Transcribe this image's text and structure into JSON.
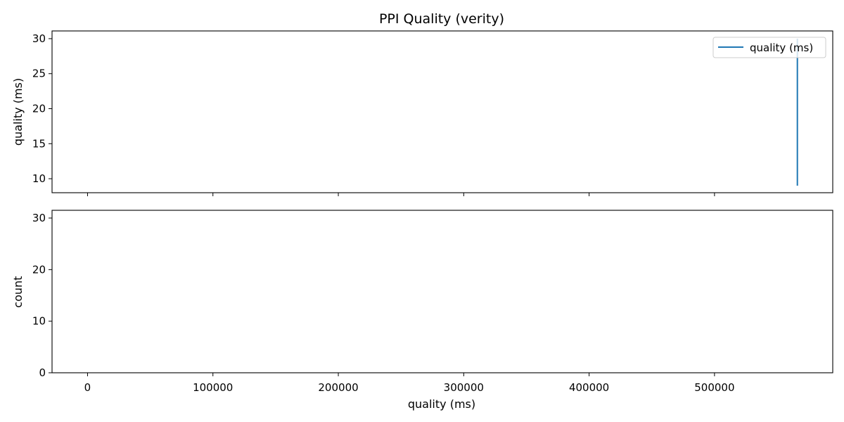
{
  "chart_data": [
    {
      "type": "line",
      "title": "PPI Quality (verity)",
      "xlabel": "",
      "ylabel": "quality (ms)",
      "xlim": [
        -28300,
        594300
      ],
      "ylim": [
        8.0,
        31.1
      ],
      "xticks": [
        0,
        100000,
        200000,
        300000,
        400000,
        500000
      ],
      "yticks": [
        10,
        15,
        20,
        25,
        30
      ],
      "ytick_labels": [
        "10",
        "15",
        "20",
        "25",
        "30"
      ],
      "grid": false,
      "legend": {
        "position": "upper-right",
        "entries": [
          "quality (ms)"
        ]
      },
      "series": [
        {
          "name": "quality (ms)",
          "color": "#1f77b4",
          "x": [
            566100,
            566100,
            566100,
            566100,
            566100
          ],
          "y": [
            30,
            9,
            14,
            27,
            12
          ]
        }
      ]
    },
    {
      "type": "bar",
      "xlabel": "quality (ms)",
      "ylabel": "count",
      "xlim": [
        -28300,
        594300
      ],
      "ylim": [
        0,
        31.5
      ],
      "xticks": [
        0,
        100000,
        200000,
        300000,
        400000,
        500000
      ],
      "xtick_labels": [
        "0",
        "100000",
        "200000",
        "300000",
        "400000",
        "500000"
      ],
      "yticks": [
        0,
        10,
        20,
        30
      ],
      "ytick_labels": [
        "0",
        "10",
        "20",
        "30"
      ],
      "grid": false,
      "values": []
    }
  ]
}
